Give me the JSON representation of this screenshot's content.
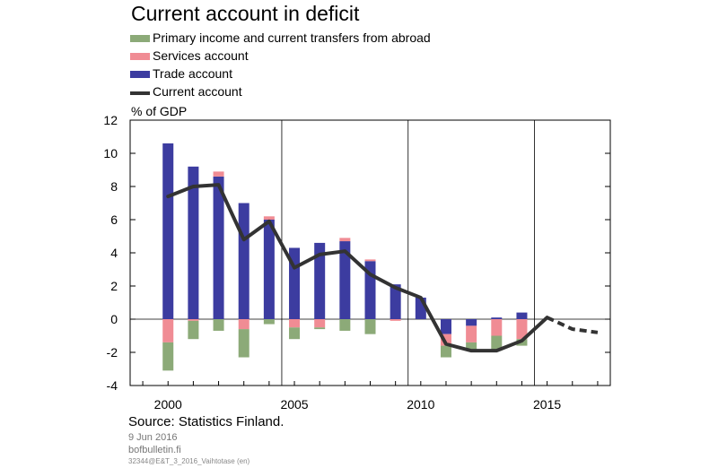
{
  "chart_data": {
    "type": "bar",
    "title": "Current account in deficit",
    "ylabel": "% of GDP",
    "ylim": [
      -4,
      12
    ],
    "yticks": [
      -4,
      -2,
      0,
      2,
      4,
      6,
      8,
      10,
      12
    ],
    "xlim": [
      1999,
      2017
    ],
    "xticks": [
      2000,
      2005,
      2010,
      2015
    ],
    "grid": "vertical at 2005, 2010, 2015",
    "legend_position": "top-left",
    "stacked": true,
    "x": [
      2000,
      2001,
      2002,
      2003,
      2004,
      2005,
      2006,
      2007,
      2008,
      2009,
      2010,
      2011,
      2012,
      2013,
      2014
    ],
    "series": [
      {
        "name": "Primary income and current transfers from abroad",
        "color": "#8caa78",
        "values": [
          -1.7,
          -1.1,
          -0.7,
          -1.7,
          -0.3,
          -0.7,
          -0.1,
          -0.7,
          -0.9,
          0.0,
          0.0,
          -0.7,
          -0.5,
          -0.9,
          -0.4
        ]
      },
      {
        "name": "Services account",
        "color": "#f08c94",
        "values": [
          -1.4,
          -0.1,
          0.3,
          -0.6,
          0.2,
          -0.5,
          -0.5,
          0.2,
          0.1,
          -0.1,
          0.0,
          -0.7,
          -1.0,
          -1.0,
          -1.2
        ]
      },
      {
        "name": "Trade account",
        "color": "#3c3ca0",
        "values": [
          10.6,
          9.2,
          8.6,
          7.0,
          6.0,
          4.3,
          4.6,
          4.7,
          3.5,
          2.1,
          1.3,
          -0.9,
          -0.4,
          0.1,
          0.4
        ]
      }
    ],
    "line_series": {
      "name": "Current account",
      "color": "#333333",
      "values": [
        {
          "x": 2000,
          "y": 7.4
        },
        {
          "x": 2001,
          "y": 8.0
        },
        {
          "x": 2002,
          "y": 8.1
        },
        {
          "x": 2003,
          "y": 4.8
        },
        {
          "x": 2004,
          "y": 5.9
        },
        {
          "x": 2005,
          "y": 3.1
        },
        {
          "x": 2006,
          "y": 3.9
        },
        {
          "x": 2007,
          "y": 4.1
        },
        {
          "x": 2008,
          "y": 2.7
        },
        {
          "x": 2009,
          "y": 1.9
        },
        {
          "x": 2010,
          "y": 1.3
        },
        {
          "x": 2011,
          "y": -1.5
        },
        {
          "x": 2012,
          "y": -1.9
        },
        {
          "x": 2013,
          "y": -1.9
        },
        {
          "x": 2014,
          "y": -1.3
        },
        {
          "x": 2015,
          "y": 0.1
        }
      ],
      "forecast_values": [
        {
          "x": 2015,
          "y": 0.1
        },
        {
          "x": 2016,
          "y": -0.6
        },
        {
          "x": 2017,
          "y": -0.8
        }
      ]
    }
  },
  "footer": {
    "source": "Source: Statistics Finland.",
    "date": "9 Jun 2016",
    "site": "bofbulletin.fi",
    "code": "32344@E&T_3_2016_Vaihtotase (en)"
  }
}
